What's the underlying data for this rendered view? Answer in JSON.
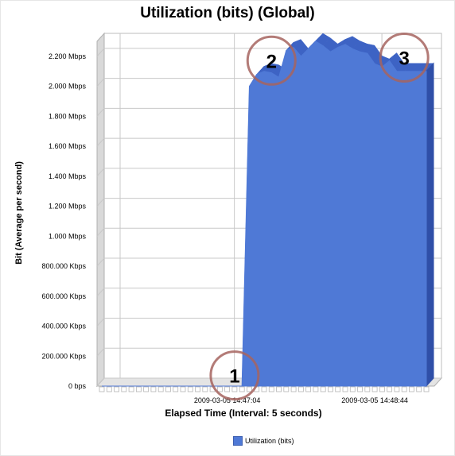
{
  "chart_data": {
    "type": "area",
    "title": "Utilization (bits) (Global)",
    "xlabel": "Elapsed Time (Interval: 5 seconds)",
    "ylabel": "Bit (Average per second)",
    "x_tick_labels": [
      {
        "label": "2009-03-05 14:47:04",
        "index": 17
      },
      {
        "label": "2009-03-05 14:48:44",
        "index": 37
      }
    ],
    "y_ticks": [
      {
        "value": 0,
        "label": "0 bps"
      },
      {
        "value": 200,
        "label": "200.000 Kbps"
      },
      {
        "value": 400,
        "label": "400.000 Kbps"
      },
      {
        "value": 600,
        "label": "600.000 Kbps"
      },
      {
        "value": 800,
        "label": "800.000 Kbps"
      },
      {
        "value": 1000,
        "label": "1.000 Mbps"
      },
      {
        "value": 1200,
        "label": "1.200 Mbps"
      },
      {
        "value": 1400,
        "label": "1.400 Mbps"
      },
      {
        "value": 1600,
        "label": "1.600 Mbps"
      },
      {
        "value": 1800,
        "label": "1.800 Mbps"
      },
      {
        "value": 2000,
        "label": "2.000 Mbps"
      },
      {
        "value": 2200,
        "label": "2.200 Mbps"
      }
    ],
    "y_unit_note": "values in Kbps",
    "ylim": [
      0,
      2300
    ],
    "x_count": 45,
    "grid": true,
    "legend_position": "bottom",
    "series": [
      {
        "name": "Utilization (bits)",
        "color": "#4f79d6",
        "values": [
          0,
          0,
          0,
          0,
          0,
          0,
          0,
          0,
          0,
          0,
          0,
          0,
          0,
          0,
          0,
          0,
          0,
          0,
          0,
          0,
          2000,
          2080,
          2100,
          2090,
          2060,
          2240,
          2260,
          2200,
          2250,
          2300,
          2270,
          2230,
          2260,
          2280,
          2250,
          2230,
          2220,
          2150,
          2130,
          2170,
          2100,
          2100,
          2100,
          2100,
          2100
        ]
      }
    ],
    "annotations": [
      {
        "label": "1",
        "index": 18,
        "value": 50
      },
      {
        "label": "2",
        "index": 23,
        "value": 2150
      },
      {
        "label": "3",
        "index": 41,
        "value": 2170
      }
    ]
  },
  "legend_label": "Utilization (bits)"
}
